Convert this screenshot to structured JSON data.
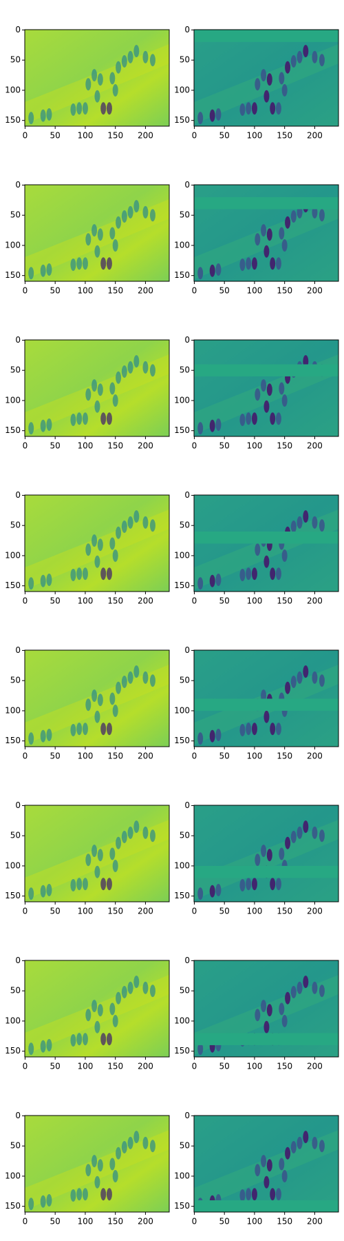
{
  "chart_data": [
    {
      "type": "image",
      "xlim": [
        -0.5,
        239.5
      ],
      "ylim": [
        159.5,
        -0.5
      ],
      "xticks": [
        0,
        50,
        100,
        150,
        200
      ],
      "yticks": [
        0,
        50,
        100,
        150
      ]
    },
    {
      "type": "image",
      "xlim": [
        -0.5,
        239.5
      ],
      "ylim": [
        159.5,
        -0.5
      ],
      "xticks": [
        0,
        50,
        100,
        150,
        200
      ],
      "yticks": [
        0,
        50,
        100,
        150
      ]
    },
    {
      "type": "image",
      "xlim": [
        -0.5,
        239.5
      ],
      "ylim": [
        159.5,
        -0.5
      ],
      "xticks": [
        0,
        50,
        100,
        150,
        200
      ],
      "yticks": [
        0,
        50,
        100,
        150
      ]
    },
    {
      "type": "image",
      "xlim": [
        -0.5,
        239.5
      ],
      "ylim": [
        159.5,
        -0.5
      ],
      "xticks": [
        0,
        50,
        100,
        150,
        200
      ],
      "yticks": [
        0,
        50,
        100,
        150
      ]
    },
    {
      "type": "image",
      "xlim": [
        -0.5,
        239.5
      ],
      "ylim": [
        159.5,
        -0.5
      ],
      "xticks": [
        0,
        50,
        100,
        150,
        200
      ],
      "yticks": [
        0,
        50,
        100,
        150
      ]
    },
    {
      "type": "image",
      "xlim": [
        -0.5,
        239.5
      ],
      "ylim": [
        159.5,
        -0.5
      ],
      "xticks": [
        0,
        50,
        100,
        150,
        200
      ],
      "yticks": [
        0,
        50,
        100,
        150
      ]
    },
    {
      "type": "image",
      "xlim": [
        -0.5,
        239.5
      ],
      "ylim": [
        159.5,
        -0.5
      ],
      "xticks": [
        0,
        50,
        100,
        150,
        200
      ],
      "yticks": [
        0,
        50,
        100,
        150
      ]
    },
    {
      "type": "image",
      "xlim": [
        -0.5,
        239.5
      ],
      "ylim": [
        159.5,
        -0.5
      ],
      "xticks": [
        0,
        50,
        100,
        150,
        200
      ],
      "yticks": [
        0,
        50,
        100,
        150
      ]
    },
    {
      "type": "image",
      "xlim": [
        -0.5,
        239.5
      ],
      "ylim": [
        159.5,
        -0.5
      ],
      "xticks": [
        0,
        50,
        100,
        150,
        200
      ],
      "yticks": [
        0,
        50,
        100,
        150
      ]
    },
    {
      "type": "image",
      "xlim": [
        -0.5,
        239.5
      ],
      "ylim": [
        159.5,
        -0.5
      ],
      "xticks": [
        0,
        50,
        100,
        150,
        200
      ],
      "yticks": [
        0,
        50,
        100,
        150
      ]
    },
    {
      "type": "image",
      "xlim": [
        -0.5,
        239.5
      ],
      "ylim": [
        159.5,
        -0.5
      ],
      "xticks": [
        0,
        50,
        100,
        150,
        200
      ],
      "yticks": [
        0,
        50,
        100,
        150
      ]
    },
    {
      "type": "image",
      "xlim": [
        -0.5,
        239.5
      ],
      "ylim": [
        159.5,
        -0.5
      ],
      "xticks": [
        0,
        50,
        100,
        150,
        200
      ],
      "yticks": [
        0,
        50,
        100,
        150
      ]
    },
    {
      "type": "image",
      "xlim": [
        -0.5,
        239.5
      ],
      "ylim": [
        159.5,
        -0.5
      ],
      "xticks": [
        0,
        50,
        100,
        150,
        200
      ],
      "yticks": [
        0,
        50,
        100,
        150
      ]
    },
    {
      "type": "image",
      "xlim": [
        -0.5,
        239.5
      ],
      "ylim": [
        159.5,
        -0.5
      ],
      "xticks": [
        0,
        50,
        100,
        150,
        200
      ],
      "yticks": [
        0,
        50,
        100,
        150
      ]
    },
    {
      "type": "image",
      "xlim": [
        -0.5,
        239.5
      ],
      "ylim": [
        159.5,
        -0.5
      ],
      "xticks": [
        0,
        50,
        100,
        150,
        200
      ],
      "yticks": [
        0,
        50,
        100,
        150
      ]
    },
    {
      "type": "image",
      "xlim": [
        -0.5,
        239.5
      ],
      "ylim": [
        159.5,
        -0.5
      ],
      "xticks": [
        0,
        50,
        100,
        150,
        200
      ],
      "yticks": [
        0,
        50,
        100,
        150
      ]
    }
  ]
}
